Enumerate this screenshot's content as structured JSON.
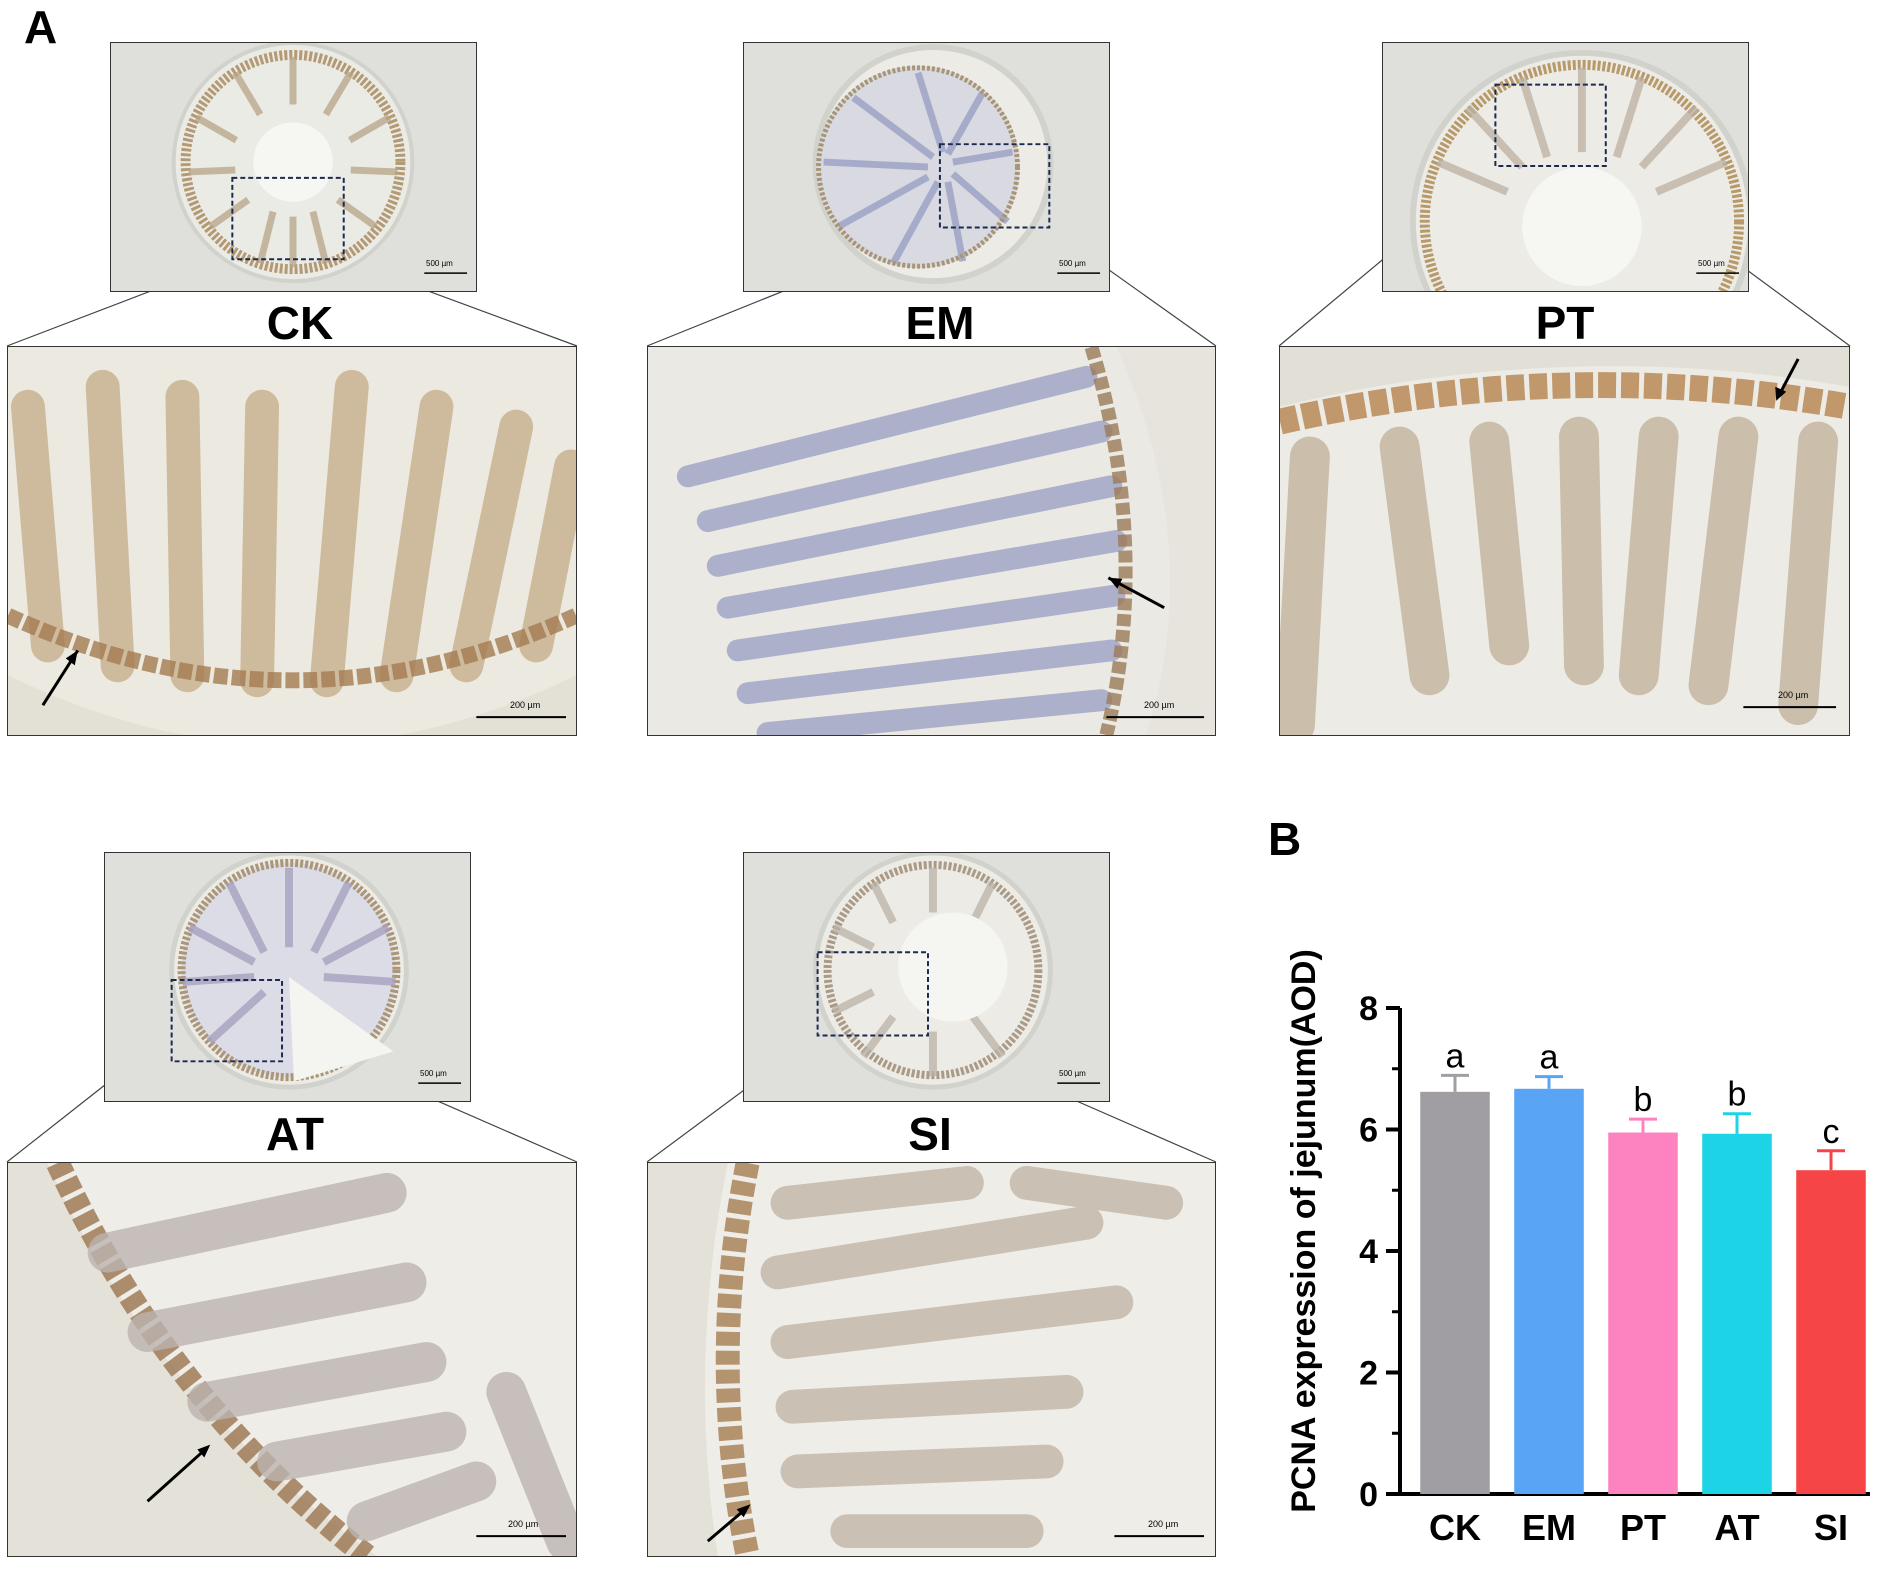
{
  "panels": {
    "a_label": "A",
    "b_label": "B"
  },
  "micrographs": [
    {
      "group": "CK",
      "thumb_scale": "500 µm",
      "zoom_scale": "200 µm",
      "tint": "#b49a74"
    },
    {
      "group": "EM",
      "thumb_scale": "500 µm",
      "zoom_scale": "200 µm",
      "tint": "#9aa0c4"
    },
    {
      "group": "PT",
      "thumb_scale": "500 µm",
      "zoom_scale": "200 µm",
      "tint": "#b8996a"
    },
    {
      "group": "AT",
      "thumb_scale": "500 µm",
      "zoom_scale": "200 µm",
      "tint": "#a8a2c0"
    },
    {
      "group": "SI",
      "thumb_scale": "500 µm",
      "zoom_scale": "200 µm",
      "tint": "#aa9a86"
    }
  ],
  "chart_data": {
    "type": "bar",
    "categories": [
      "CK",
      "EM",
      "PT",
      "AT",
      "SI"
    ],
    "values": [
      6.62,
      6.67,
      5.95,
      5.93,
      5.33
    ],
    "errors": [
      0.27,
      0.2,
      0.22,
      0.33,
      0.32
    ],
    "significance": [
      "a",
      "a",
      "b",
      "b",
      "c"
    ],
    "colors": [
      "#a09ea3",
      "#5aa4f6",
      "#fc82c0",
      "#1dd3e6",
      "#f64547"
    ],
    "ylabel": "PCNA expression of  jejunum(AOD)",
    "ylim": [
      0,
      8
    ],
    "yticks": [
      0,
      2,
      4,
      6,
      8
    ],
    "grid": false,
    "legend": "none"
  }
}
